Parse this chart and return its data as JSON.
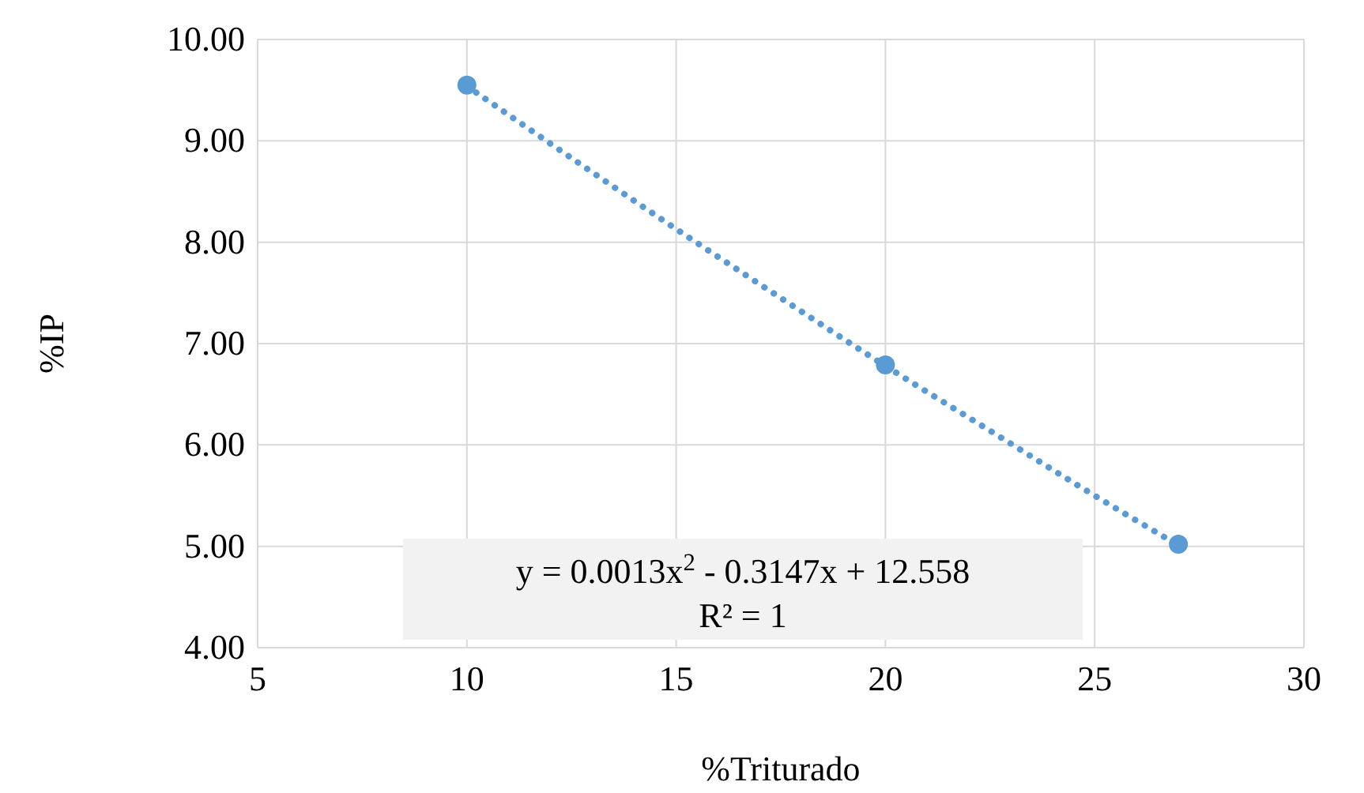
{
  "chart_data": {
    "type": "scatter",
    "xlabel": "%Triturado",
    "ylabel": "%IP",
    "xlim": [
      5,
      30
    ],
    "xticks": [
      5,
      10,
      15,
      20,
      25,
      30
    ],
    "ylim": [
      4,
      10
    ],
    "yticks": [
      {
        "value": 4,
        "label": "4.00"
      },
      {
        "value": 5,
        "label": "5.00"
      },
      {
        "value": 6,
        "label": "6.00"
      },
      {
        "value": 7,
        "label": "7.00"
      },
      {
        "value": 8,
        "label": "8.00"
      },
      {
        "value": 9,
        "label": "9.00"
      },
      {
        "value": 10,
        "label": "10.00"
      }
    ],
    "grid": true,
    "series": [
      {
        "type": "line",
        "color": "#5b9bd5",
        "line_style": "dotted",
        "marker": "none",
        "x": [
          10,
          12.5,
          15,
          17.5,
          20,
          22.5,
          25,
          27
        ],
        "values": [
          9.54,
          8.83,
          8.13,
          7.45,
          6.78,
          6.14,
          5.5,
          5.01
        ]
      },
      {
        "color": "#5b9bd5",
        "marker": "circle",
        "x": [
          10,
          20,
          27
        ],
        "values": [
          9.55,
          6.79,
          5.02
        ]
      }
    ],
    "annotations": [
      "y = 0.0013x$^{2}$ - 0.3147x + 12.558",
      "R² = 1"
    ]
  }
}
